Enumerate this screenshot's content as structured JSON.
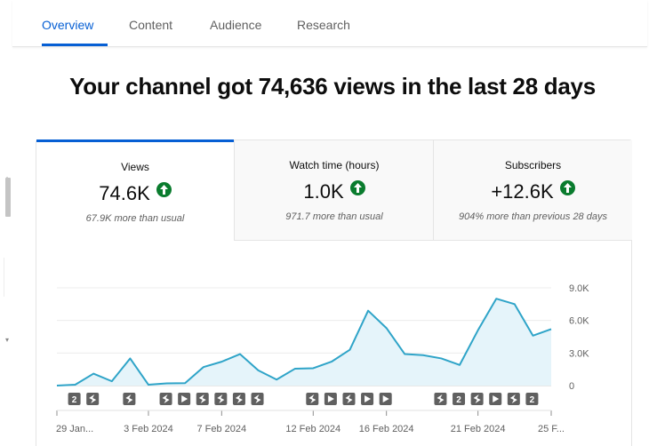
{
  "tabs": [
    {
      "label": "Overview",
      "active": true
    },
    {
      "label": "Content"
    },
    {
      "label": "Audience"
    },
    {
      "label": "Research"
    }
  ],
  "headline": "Your channel got 74,636 views in the last 28 days",
  "metrics": [
    {
      "label": "Views",
      "value": "74.6K",
      "sub": "67.9K more than usual"
    },
    {
      "label": "Watch time (hours)",
      "value": "1.0K",
      "sub": "971.7 more than usual"
    },
    {
      "label": "Subscribers",
      "value": "+12.6K",
      "sub": "904% more than previous 28 days"
    }
  ],
  "colors": {
    "accent": "#065fd4",
    "line": "#2fa4c8",
    "fill": "#e5f4fa",
    "up": "#0a7c2e"
  },
  "chart_data": {
    "type": "area",
    "ylim": [
      0,
      9000
    ],
    "yticks": [
      "9.0K",
      "6.0K",
      "3.0K",
      "0"
    ],
    "ytick_values": [
      9000,
      6000,
      3000,
      0
    ],
    "xtick_labels": [
      {
        "label": "29 Jan...",
        "day": 0
      },
      {
        "label": "3 Feb 2024",
        "day": 5
      },
      {
        "label": "7 Feb 2024",
        "day": 9
      },
      {
        "label": "12 Feb 2024",
        "day": 14
      },
      {
        "label": "16 Feb 2024",
        "day": 18
      },
      {
        "label": "21 Feb 2024",
        "day": 23
      },
      {
        "label": "25 F...",
        "day": 27
      }
    ],
    "days": [
      0,
      1,
      2,
      3,
      4,
      5,
      6,
      7,
      8,
      9,
      10,
      11,
      12,
      13,
      14,
      15,
      16,
      17,
      18,
      19,
      20,
      21,
      22,
      23,
      24,
      25,
      26,
      27
    ],
    "values": [
      0,
      80,
      1100,
      400,
      2500,
      80,
      200,
      220,
      1700,
      2200,
      2900,
      1400,
      550,
      1550,
      1600,
      2200,
      3300,
      6900,
      5300,
      2900,
      2800,
      2500,
      1900,
      5100,
      8000,
      7500,
      4600,
      5200
    ],
    "markers": [
      {
        "day": 1,
        "kind": "count",
        "label": "2"
      },
      {
        "day": 2,
        "kind": "short"
      },
      {
        "day": 4,
        "kind": "short"
      },
      {
        "day": 6,
        "kind": "short"
      },
      {
        "day": 7,
        "kind": "play"
      },
      {
        "day": 8,
        "kind": "short"
      },
      {
        "day": 9,
        "kind": "short"
      },
      {
        "day": 10,
        "kind": "short"
      },
      {
        "day": 11,
        "kind": "short"
      },
      {
        "day": 14,
        "kind": "short"
      },
      {
        "day": 15,
        "kind": "play"
      },
      {
        "day": 16,
        "kind": "short"
      },
      {
        "day": 17,
        "kind": "play"
      },
      {
        "day": 18,
        "kind": "play"
      },
      {
        "day": 21,
        "kind": "short"
      },
      {
        "day": 22,
        "kind": "count",
        "label": "2"
      },
      {
        "day": 23,
        "kind": "short"
      },
      {
        "day": 24,
        "kind": "play"
      },
      {
        "day": 25,
        "kind": "short"
      },
      {
        "day": 26,
        "kind": "count",
        "label": "2"
      }
    ]
  }
}
